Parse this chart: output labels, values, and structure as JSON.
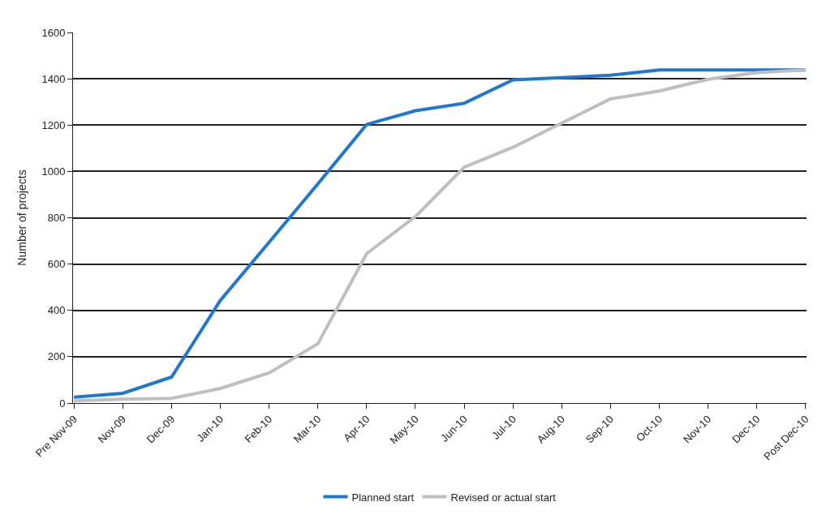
{
  "chart_data": {
    "type": "line",
    "ylabel": "Number of projects",
    "categories": [
      "Pre Nov-09",
      "Nov-09",
      "Dec-09",
      "Jan-10",
      "Feb-10",
      "Mar-10",
      "Apr-10",
      "May-10",
      "Jun-10",
      "Jul-10",
      "Aug-10",
      "Sep-10",
      "Oct-10",
      "Nov-10",
      "Dec-10",
      "Post Dec-10"
    ],
    "series": [
      {
        "name": "Planned start",
        "color": "#1f77d0",
        "values": [
          25,
          42,
          112,
          443,
          694,
          946,
          1203,
          1262,
          1294,
          1395,
          1405,
          1415,
          1438,
          1438,
          1438,
          1438
        ]
      },
      {
        "name": "Revised or actual start",
        "color": "#bfbfc1",
        "values": [
          10,
          17,
          20,
          63,
          130,
          256,
          645,
          805,
          1018,
          1104,
          1209,
          1313,
          1347,
          1398,
          1427,
          1438
        ]
      }
    ],
    "ylim": [
      0,
      1600
    ],
    "yticks": [
      0,
      200,
      400,
      600,
      800,
      1000,
      1200,
      1400,
      1600
    ],
    "grid": "y",
    "legend": "bottom",
    "marker": "none",
    "line_style": "solid"
  }
}
